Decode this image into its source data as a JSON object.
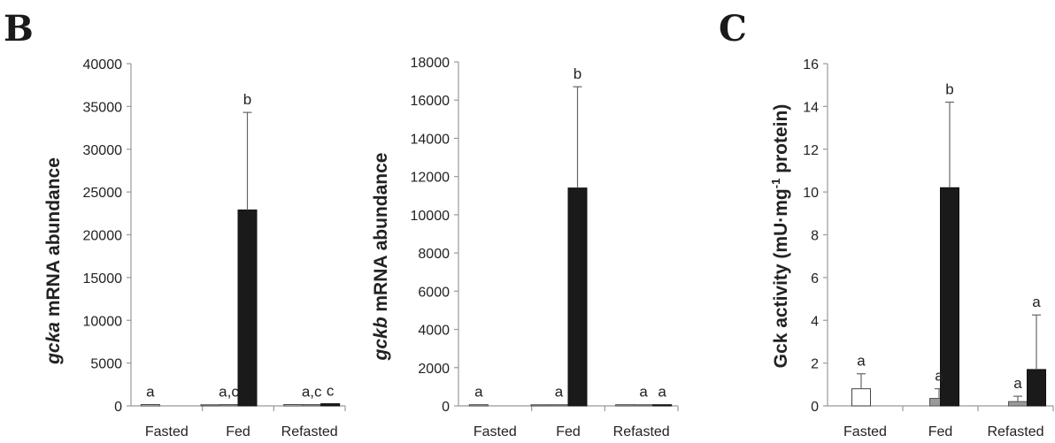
{
  "panel_letters": [
    "B",
    "C"
  ],
  "chart_data": [
    {
      "type": "bar",
      "ylabel_italic": "gcka",
      "ylabel_rest": " mRNA abundance",
      "ylim": [
        0,
        40000
      ],
      "yticks": [
        0,
        5000,
        10000,
        15000,
        20000,
        25000,
        30000,
        35000,
        40000
      ],
      "categories": [
        "Fasted",
        "Fed",
        "Refasted"
      ],
      "series": [
        {
          "fill": "#ffffff",
          "stroke": "#444444",
          "values": [
            150,
            100,
            150
          ],
          "errors": [
            0,
            0,
            0
          ]
        },
        {
          "fill": "#9a9a9a",
          "stroke": "#555555",
          "values": [
            null,
            150,
            150
          ],
          "errors": [
            0,
            0,
            0
          ]
        },
        {
          "fill": "#1a1a1a",
          "stroke": "#111111",
          "values": [
            null,
            22900,
            250
          ],
          "errors": [
            0,
            11400,
            0
          ]
        }
      ],
      "annotations": [
        {
          "category": 0,
          "series": 0,
          "text": "a"
        },
        {
          "category": 1,
          "series": 1,
          "text": "a,c"
        },
        {
          "category": 1,
          "series": 2,
          "text": "b"
        },
        {
          "category": 2,
          "series": 1,
          "text": "a,c"
        },
        {
          "category": 2,
          "series": 2,
          "text": "c"
        }
      ]
    },
    {
      "type": "bar",
      "ylabel_italic": "gckb",
      "ylabel_rest": " mRNA abundance",
      "ylim": [
        0,
        18000
      ],
      "yticks": [
        0,
        2000,
        4000,
        6000,
        8000,
        10000,
        12000,
        14000,
        16000,
        18000
      ],
      "categories": [
        "Fasted",
        "Fed",
        "Refasted"
      ],
      "series": [
        {
          "fill": "#ffffff",
          "stroke": "#444444",
          "values": [
            60,
            40,
            60
          ],
          "errors": [
            0,
            0,
            0
          ]
        },
        {
          "fill": "#9a9a9a",
          "stroke": "#555555",
          "values": [
            null,
            60,
            60
          ],
          "errors": [
            0,
            0,
            0
          ]
        },
        {
          "fill": "#1a1a1a",
          "stroke": "#111111",
          "values": [
            null,
            11400,
            60
          ],
          "errors": [
            0,
            5300,
            0
          ]
        }
      ],
      "annotations": [
        {
          "category": 0,
          "series": 0,
          "text": "a"
        },
        {
          "category": 1,
          "series": 1,
          "text": "a"
        },
        {
          "category": 1,
          "series": 2,
          "text": "b"
        },
        {
          "category": 2,
          "series": 1,
          "text": "a"
        },
        {
          "category": 2,
          "series": 2,
          "text": "a"
        }
      ]
    },
    {
      "type": "bar",
      "ylabel_pre": "Gck activity (mU·mg",
      "ylabel_sup": "-1",
      "ylabel_post": " protein)",
      "ylim": [
        0,
        16
      ],
      "yticks": [
        0,
        2,
        4,
        6,
        8,
        10,
        12,
        14,
        16
      ],
      "categories": [
        "Fasted",
        "Fed",
        "Refasted"
      ],
      "series": [
        {
          "fill": "#ffffff",
          "stroke": "#444444",
          "values": [
            0.8,
            null,
            null
          ],
          "errors": [
            0.7,
            0,
            0
          ]
        },
        {
          "fill": "#9a9a9a",
          "stroke": "#555555",
          "values": [
            null,
            0.35,
            0.2
          ],
          "errors": [
            0,
            0.45,
            0.25
          ]
        },
        {
          "fill": "#1a1a1a",
          "stroke": "#111111",
          "values": [
            null,
            10.2,
            1.7
          ],
          "errors": [
            0,
            4.0,
            2.55
          ]
        }
      ],
      "annotations": [
        {
          "category": 0,
          "series": 0,
          "text": "a"
        },
        {
          "category": 1,
          "series": 1,
          "text": "a"
        },
        {
          "category": 1,
          "series": 2,
          "text": "b"
        },
        {
          "category": 2,
          "series": 1,
          "text": "a"
        },
        {
          "category": 2,
          "series": 2,
          "text": "a"
        }
      ]
    }
  ]
}
